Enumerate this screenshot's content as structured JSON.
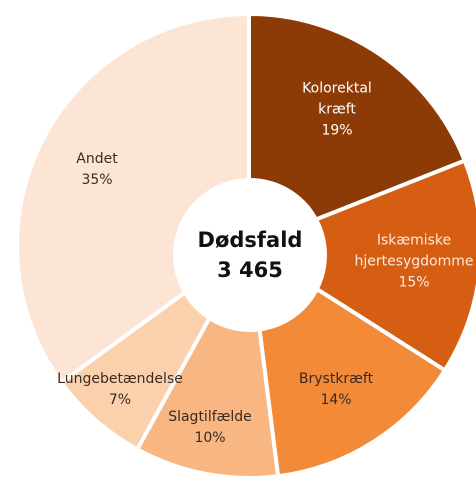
{
  "chart_data": {
    "type": "donut",
    "center_title": "Dødsfald",
    "center_value": "3 465",
    "categories": [
      "Kolorektal kræft",
      "Iskæmiske hjertesygdomme",
      "Brystkræft",
      "Slagtilfælde",
      "Lungebetændelse",
      "Andet"
    ],
    "values": [
      19,
      15,
      14,
      10,
      7,
      35
    ],
    "value_labels": [
      "19%",
      "15%",
      "14%",
      "10%",
      "7%",
      "35%"
    ],
    "colors": [
      "#8c3b07",
      "#d55e12",
      "#f28a38",
      "#f8b682",
      "#fbd0ac",
      "#fde5d5"
    ]
  }
}
